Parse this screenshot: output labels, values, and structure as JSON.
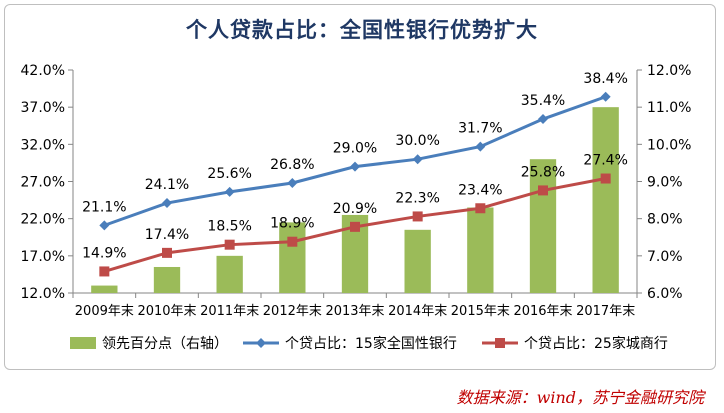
{
  "chart_data": {
    "type": "bar",
    "title": "个人贷款占比：全国性银行优势扩大",
    "categories": [
      "2009年末",
      "2010年末",
      "2011年末",
      "2012年末",
      "2013年末",
      "2014年末",
      "2015年末",
      "2016年末",
      "2017年末"
    ],
    "left_axis": {
      "ylim": [
        12.0,
        42.0
      ],
      "ticks": [
        "12.0%",
        "17.0%",
        "22.0%",
        "27.0%",
        "32.0%",
        "37.0%",
        "42.0%"
      ]
    },
    "right_axis": {
      "ylim": [
        6.0,
        12.0
      ],
      "ticks": [
        "6.0%",
        "7.0%",
        "8.0%",
        "9.0%",
        "10.0%",
        "11.0%",
        "12.0%"
      ]
    },
    "series": [
      {
        "name": "领先百分点（右轴）",
        "kind": "bar",
        "axis": "right",
        "color": "#9bbb59",
        "values": [
          6.2,
          6.7,
          7.0,
          7.9,
          8.1,
          7.7,
          8.3,
          9.6,
          11.0
        ]
      },
      {
        "name": "个贷占比：15家全国性银行",
        "kind": "line",
        "axis": "left",
        "color": "#4a7ebb",
        "marker": "diamond",
        "values": [
          21.1,
          24.1,
          25.6,
          26.8,
          29.0,
          30.0,
          31.7,
          35.4,
          38.4
        ],
        "labels": [
          "21.1%",
          "24.1%",
          "25.6%",
          "26.8%",
          "29.0%",
          "30.0%",
          "31.7%",
          "35.4%",
          "38.4%"
        ]
      },
      {
        "name": "个贷占比：25家城商行",
        "kind": "line",
        "axis": "left",
        "color": "#be4b48",
        "marker": "square",
        "values": [
          14.9,
          17.4,
          18.5,
          18.9,
          20.9,
          22.3,
          23.4,
          25.8,
          27.4
        ],
        "labels": [
          "14.9%",
          "17.4%",
          "18.5%",
          "18.9%",
          "20.9%",
          "22.3%",
          "23.4%",
          "25.8%",
          "27.4%"
        ]
      }
    ],
    "legend_position": "bottom"
  },
  "source": "数据来源：wind，苏宁金融研究院"
}
